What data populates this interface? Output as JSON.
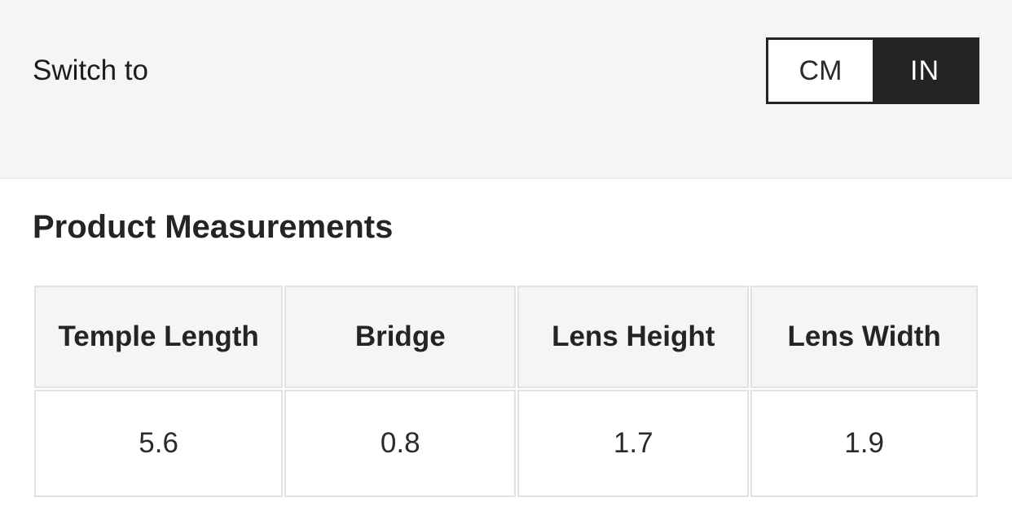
{
  "unit_switcher": {
    "label": "Switch to",
    "options": [
      {
        "label": "CM",
        "active": false
      },
      {
        "label": "IN",
        "active": true
      }
    ]
  },
  "measurements": {
    "title": "Product Measurements",
    "columns": [
      "Temple Length",
      "Bridge",
      "Lens Height",
      "Lens Width"
    ],
    "values": [
      "5.6",
      "0.8",
      "1.7",
      "1.9"
    ]
  },
  "colors": {
    "band_background": "#f5f5f5",
    "toggle_active_background": "#242424",
    "toggle_inactive_background": "#ffffff",
    "table_header_background": "#f5f5f5",
    "table_border": "#e2e2e2",
    "text": "#242424"
  }
}
